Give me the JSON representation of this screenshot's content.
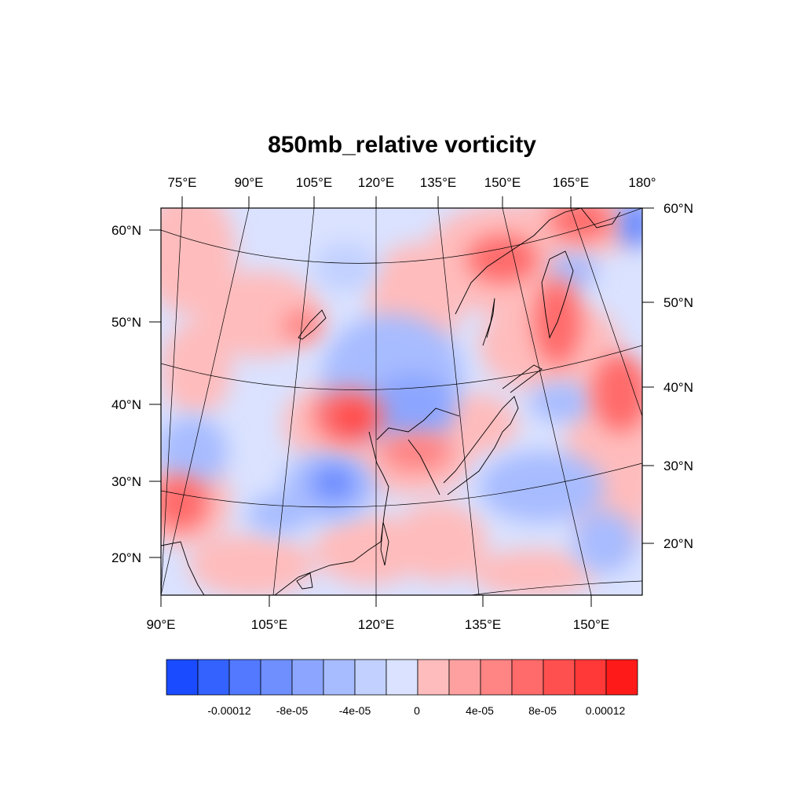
{
  "title": "850mb_relative vorticity",
  "top_lon_labels": [
    "75°E",
    "90°E",
    "105°E",
    "120°E",
    "135°E",
    "150°E",
    "165°E",
    "180°"
  ],
  "bottom_lon_labels": [
    "90°E",
    "105°E",
    "120°E",
    "135°E",
    "150°E"
  ],
  "left_lat_labels": [
    "60°N",
    "50°N",
    "40°N",
    "30°N",
    "20°N"
  ],
  "right_lat_labels": [
    "60°N",
    "50°N",
    "40°N",
    "30°N",
    "20°N"
  ],
  "colorbar": {
    "colors": [
      "#1a4bff",
      "#3362ff",
      "#5279ff",
      "#6f8fff",
      "#8ca6ff",
      "#a7bcff",
      "#c1d0ff",
      "#dae2ff",
      "#ffbcbc",
      "#ffa0a0",
      "#ff8484",
      "#ff6a6a",
      "#ff5050",
      "#ff3838",
      "#ff1a1a"
    ],
    "labels": [
      "-0.00012",
      "-8e-05",
      "-4e-05",
      "0",
      "4e-05",
      "8e-05",
      "0.00012"
    ]
  },
  "chart_data": {
    "type": "heatmap",
    "variable": "850mb_relative vorticity",
    "levels": [
      -0.00016,
      -0.00014,
      -0.00012,
      -0.0001,
      -8e-05,
      -6e-05,
      -4e-05,
      -2e-05,
      0,
      2e-05,
      4e-05,
      6e-05,
      8e-05,
      0.0001,
      0.00012,
      0.00014
    ],
    "anomalies": [
      {
        "lon": 112,
        "lat": 39,
        "value": 0.00012
      },
      {
        "lon": 93,
        "lat": 28,
        "value": 0.0001
      },
      {
        "lon": 124,
        "lat": 35,
        "value": 0.0001
      },
      {
        "lon": 140,
        "lat": 57,
        "value": 0.0001
      },
      {
        "lon": 152,
        "lat": 52,
        "value": 0.0001
      },
      {
        "lon": 156,
        "lat": 39,
        "value": 8e-05
      },
      {
        "lon": 118,
        "lat": 31,
        "value": -0.00012
      },
      {
        "lon": 95,
        "lat": 33,
        "value": -0.0001
      },
      {
        "lon": 125,
        "lat": 40,
        "value": -0.0001
      },
      {
        "lon": 108,
        "lat": 25,
        "value": -8e-05
      },
      {
        "lon": 145,
        "lat": 30,
        "value": -6e-05
      },
      {
        "lon": 160,
        "lat": 56,
        "value": -6e-05
      }
    ]
  }
}
